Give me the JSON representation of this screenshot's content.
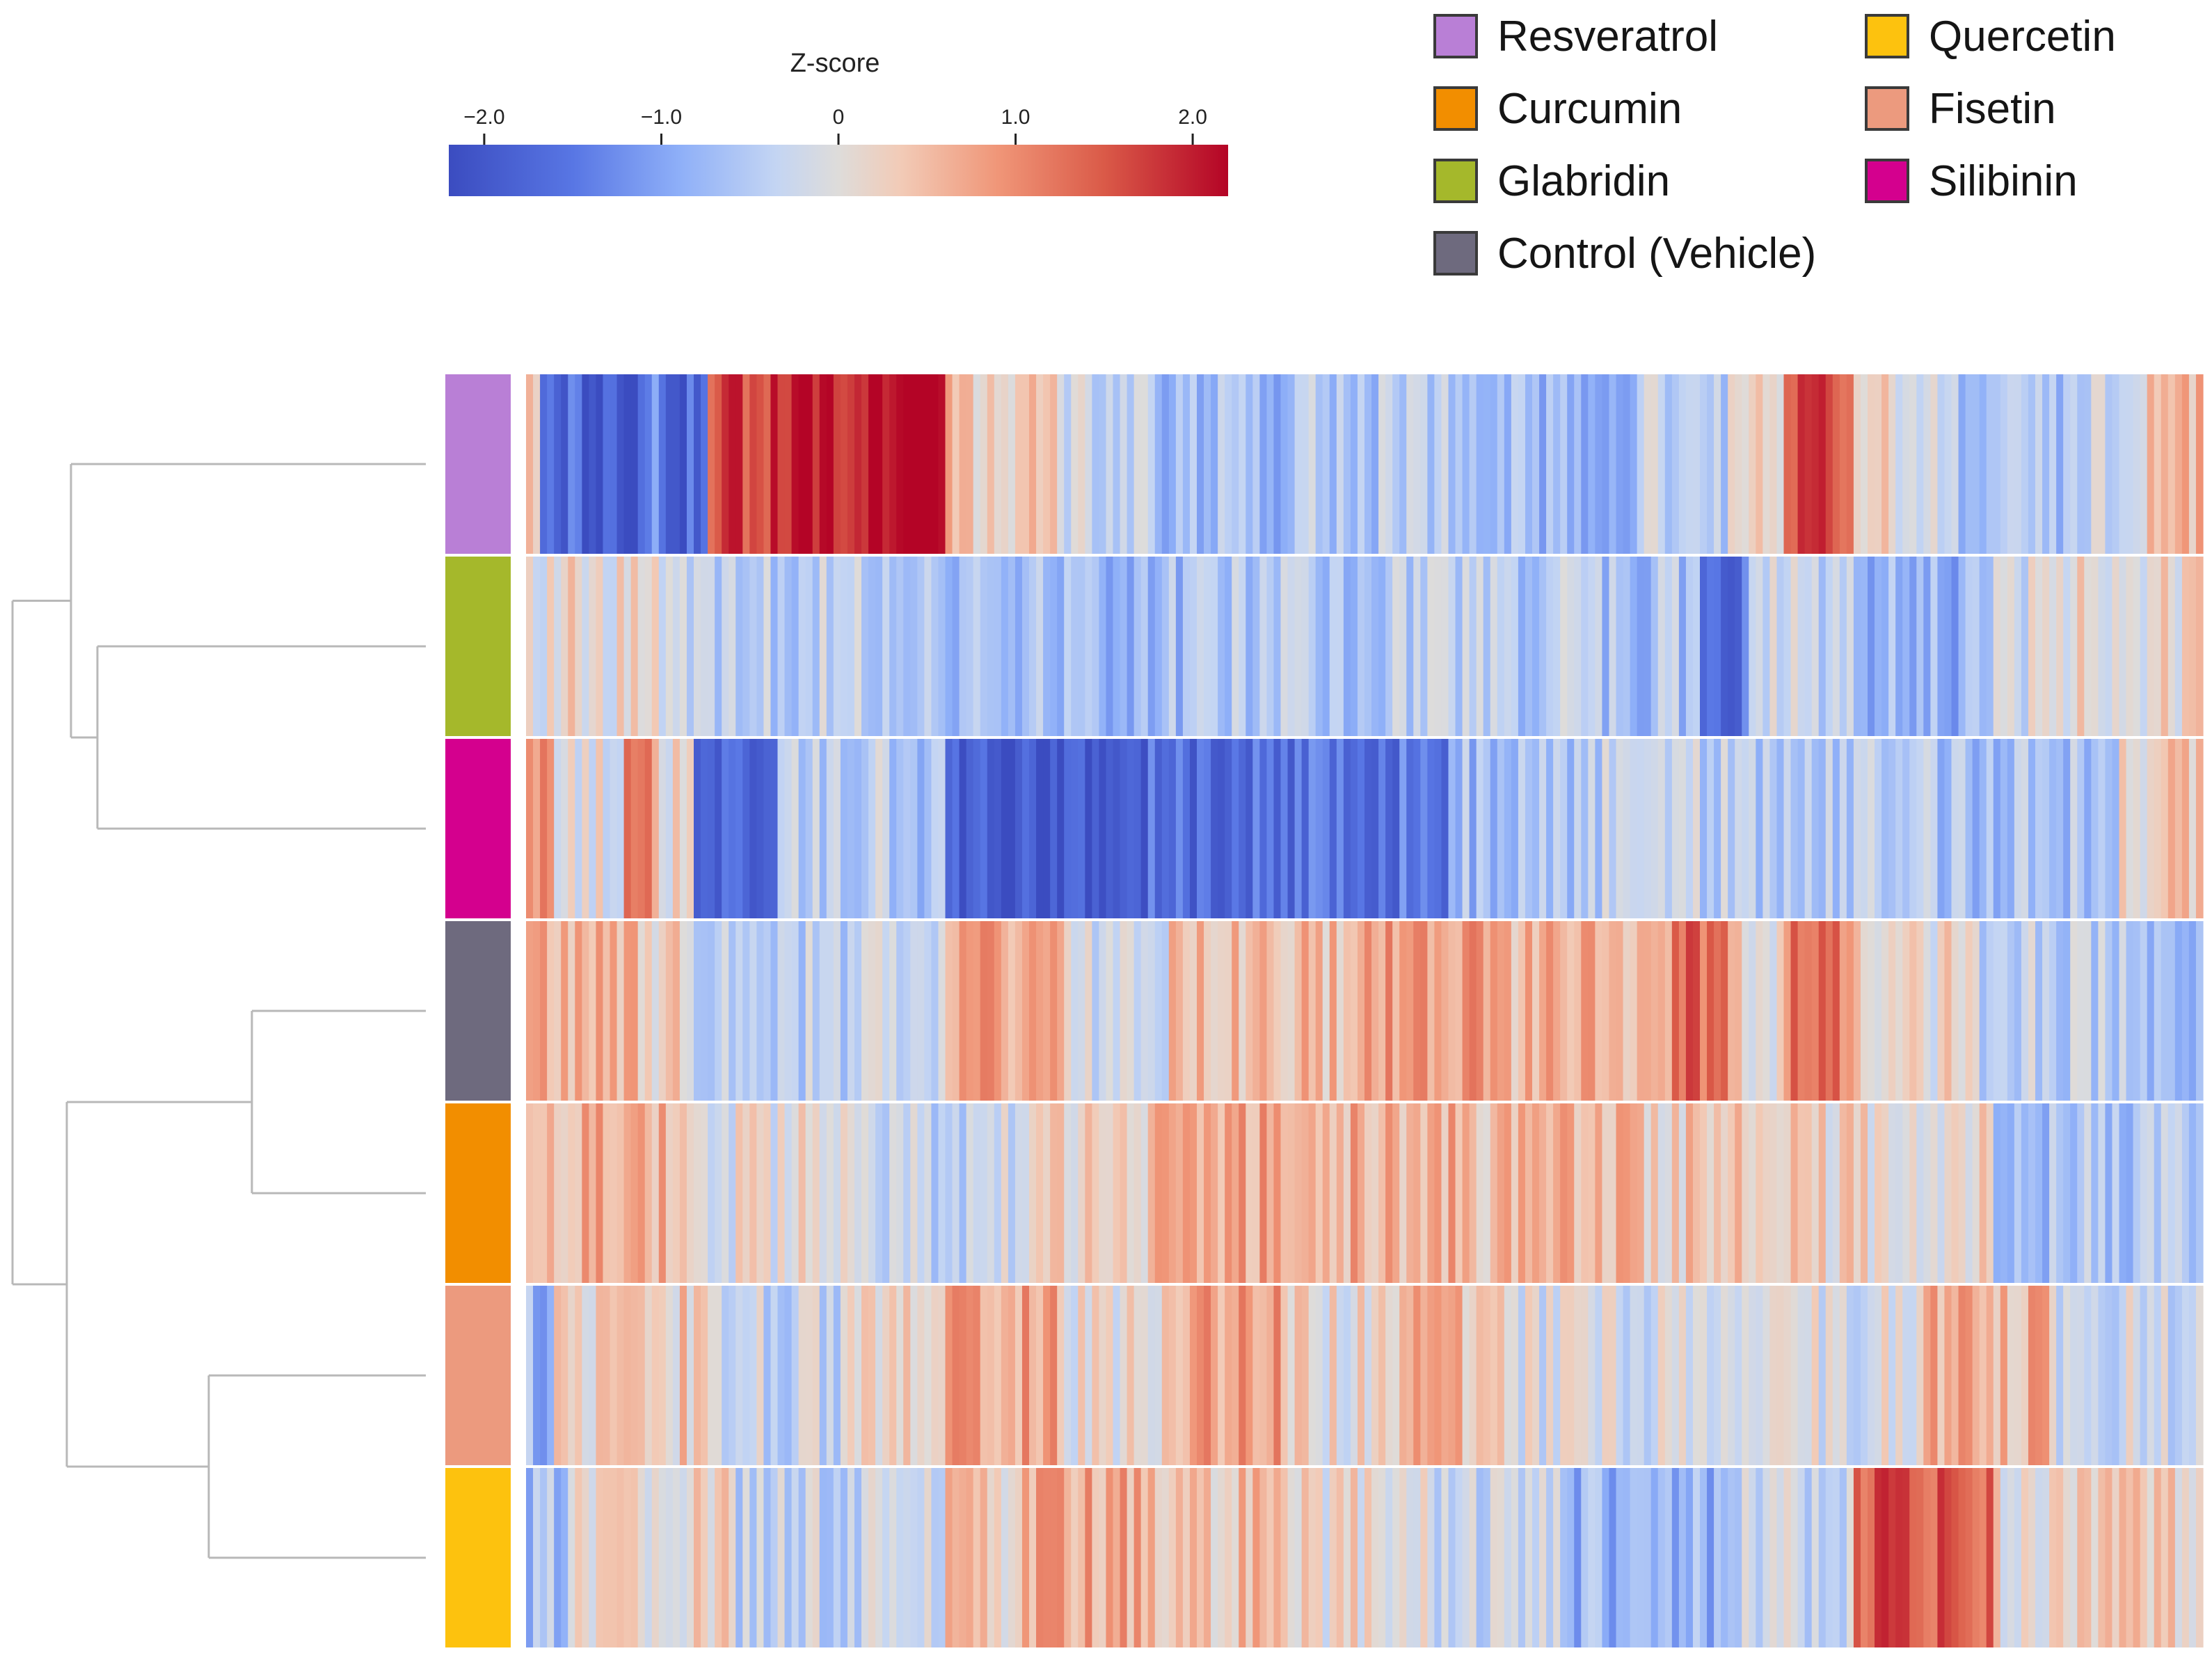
{
  "chart_data": {
    "type": "heatmap",
    "title": "",
    "colorbar": {
      "title": "Z-score",
      "min": -2.2,
      "max": 2.2,
      "ticks": [
        -2.0,
        -1.0,
        0,
        1.0,
        2.0
      ],
      "tick_labels": [
        "−2.0",
        "−1.0",
        "0",
        "1.0",
        "2.0"
      ],
      "colors": [
        "#3b4cc0",
        "#7b9ff9",
        "#c0d4f5",
        "#dddddd",
        "#f2cbb7",
        "#ee8468",
        "#b40426"
      ]
    },
    "legend": [
      {
        "label": "Resveratrol",
        "color": "#b97fd6"
      },
      {
        "label": "Quercetin",
        "color": "#fdc20e"
      },
      {
        "label": "Curcumin",
        "color": "#f28e00"
      },
      {
        "label": "Fisetin",
        "color": "#ec9a7e"
      },
      {
        "label": "Glabridin",
        "color": "#a5b82b"
      },
      {
        "label": "Silibinin",
        "color": "#d4008e"
      },
      {
        "label": "Control (Vehicle)",
        "color": "#6e6a7e"
      }
    ],
    "rows": [
      "Resveratrol",
      "Glabridin",
      "Silibinin",
      "Control (Vehicle)",
      "Curcumin",
      "Fisetin",
      "Quercetin"
    ],
    "row_colors": [
      "#b97fd6",
      "#a5b82b",
      "#d4008e",
      "#6e6a7e",
      "#f28e00",
      "#ec9a7e",
      "#fdc20e"
    ],
    "columns_count": 240,
    "dendrogram": "((Resveratrol,(Glabridin,Silibinin)),((Control (Vehicle),Curcumin),(Fisetin,Quercetin)))",
    "row_profiles": [
      [
        {
          "start": 0,
          "end": 2,
          "z": 0.2
        },
        {
          "start": 2,
          "end": 8,
          "z": -1.6
        },
        {
          "start": 8,
          "end": 16,
          "z": -1.9
        },
        {
          "start": 16,
          "end": 20,
          "z": -1.3
        },
        {
          "start": 20,
          "end": 26,
          "z": -1.7
        },
        {
          "start": 26,
          "end": 38,
          "z": 1.7
        },
        {
          "start": 38,
          "end": 48,
          "z": 1.9
        },
        {
          "start": 48,
          "end": 60,
          "z": 2.15
        },
        {
          "start": 60,
          "end": 76,
          "z": 0.4
        },
        {
          "start": 76,
          "end": 90,
          "z": -0.3
        },
        {
          "start": 90,
          "end": 110,
          "z": -0.7
        },
        {
          "start": 110,
          "end": 140,
          "z": -0.5
        },
        {
          "start": 140,
          "end": 160,
          "z": -0.8
        },
        {
          "start": 160,
          "end": 172,
          "z": -0.4
        },
        {
          "start": 172,
          "end": 180,
          "z": 0.4
        },
        {
          "start": 180,
          "end": 190,
          "z": 1.7
        },
        {
          "start": 190,
          "end": 202,
          "z": 0.1
        },
        {
          "start": 202,
          "end": 220,
          "z": -0.6
        },
        {
          "start": 220,
          "end": 232,
          "z": -0.3
        },
        {
          "start": 232,
          "end": 240,
          "z": 0.5
        }
      ],
      [
        {
          "start": 0,
          "end": 20,
          "z": 0.1
        },
        {
          "start": 20,
          "end": 60,
          "z": -0.4
        },
        {
          "start": 60,
          "end": 100,
          "z": -0.7
        },
        {
          "start": 100,
          "end": 150,
          "z": -0.5
        },
        {
          "start": 150,
          "end": 168,
          "z": -0.6
        },
        {
          "start": 168,
          "end": 175,
          "z": -1.7
        },
        {
          "start": 175,
          "end": 190,
          "z": -0.3
        },
        {
          "start": 190,
          "end": 210,
          "z": -0.8
        },
        {
          "start": 210,
          "end": 222,
          "z": -0.1
        },
        {
          "start": 222,
          "end": 240,
          "z": 0.1
        }
      ],
      [
        {
          "start": 0,
          "end": 4,
          "z": 0.8
        },
        {
          "start": 4,
          "end": 14,
          "z": 0.0
        },
        {
          "start": 14,
          "end": 18,
          "z": 0.9
        },
        {
          "start": 18,
          "end": 24,
          "z": 0.2
        },
        {
          "start": 24,
          "end": 36,
          "z": -1.6
        },
        {
          "start": 36,
          "end": 52,
          "z": -0.4
        },
        {
          "start": 52,
          "end": 60,
          "z": -0.8
        },
        {
          "start": 60,
          "end": 80,
          "z": -1.9
        },
        {
          "start": 80,
          "end": 110,
          "z": -1.7
        },
        {
          "start": 110,
          "end": 132,
          "z": -1.5
        },
        {
          "start": 132,
          "end": 150,
          "z": -0.7
        },
        {
          "start": 150,
          "end": 175,
          "z": -0.4
        },
        {
          "start": 175,
          "end": 200,
          "z": -0.5
        },
        {
          "start": 200,
          "end": 228,
          "z": -0.6
        },
        {
          "start": 228,
          "end": 240,
          "z": 0.3
        }
      ],
      [
        {
          "start": 0,
          "end": 16,
          "z": 0.6
        },
        {
          "start": 16,
          "end": 24,
          "z": 0.2
        },
        {
          "start": 24,
          "end": 46,
          "z": -0.4
        },
        {
          "start": 46,
          "end": 60,
          "z": -0.2
        },
        {
          "start": 60,
          "end": 78,
          "z": 0.7
        },
        {
          "start": 78,
          "end": 92,
          "z": -0.3
        },
        {
          "start": 92,
          "end": 120,
          "z": 0.5
        },
        {
          "start": 120,
          "end": 140,
          "z": 0.8
        },
        {
          "start": 140,
          "end": 164,
          "z": 0.6
        },
        {
          "start": 164,
          "end": 172,
          "z": 1.4
        },
        {
          "start": 172,
          "end": 180,
          "z": 0.2
        },
        {
          "start": 180,
          "end": 190,
          "z": 1.2
        },
        {
          "start": 190,
          "end": 208,
          "z": 0.1
        },
        {
          "start": 208,
          "end": 228,
          "z": -0.4
        },
        {
          "start": 228,
          "end": 240,
          "z": -0.6
        }
      ],
      [
        {
          "start": 0,
          "end": 24,
          "z": 0.6
        },
        {
          "start": 24,
          "end": 50,
          "z": 0.0
        },
        {
          "start": 50,
          "end": 70,
          "z": -0.3
        },
        {
          "start": 70,
          "end": 90,
          "z": 0.2
        },
        {
          "start": 90,
          "end": 110,
          "z": 0.7
        },
        {
          "start": 110,
          "end": 136,
          "z": 0.6
        },
        {
          "start": 136,
          "end": 160,
          "z": 0.5
        },
        {
          "start": 160,
          "end": 180,
          "z": 0.3
        },
        {
          "start": 180,
          "end": 210,
          "z": 0.2
        },
        {
          "start": 210,
          "end": 240,
          "z": -0.6
        }
      ],
      [
        {
          "start": 0,
          "end": 4,
          "z": -0.8
        },
        {
          "start": 4,
          "end": 28,
          "z": 0.3
        },
        {
          "start": 28,
          "end": 46,
          "z": -0.3
        },
        {
          "start": 46,
          "end": 60,
          "z": 0.3
        },
        {
          "start": 60,
          "end": 76,
          "z": 0.8
        },
        {
          "start": 76,
          "end": 92,
          "z": 0.1
        },
        {
          "start": 92,
          "end": 108,
          "z": 0.8
        },
        {
          "start": 108,
          "end": 124,
          "z": 0.1
        },
        {
          "start": 124,
          "end": 140,
          "z": 0.5
        },
        {
          "start": 140,
          "end": 156,
          "z": -0.1
        },
        {
          "start": 156,
          "end": 176,
          "z": -0.2
        },
        {
          "start": 176,
          "end": 200,
          "z": -0.1
        },
        {
          "start": 200,
          "end": 218,
          "z": 0.6
        },
        {
          "start": 218,
          "end": 240,
          "z": -0.2
        }
      ],
      [
        {
          "start": 0,
          "end": 6,
          "z": -0.6
        },
        {
          "start": 6,
          "end": 30,
          "z": 0.2
        },
        {
          "start": 30,
          "end": 60,
          "z": -0.3
        },
        {
          "start": 60,
          "end": 70,
          "z": 0.3
        },
        {
          "start": 70,
          "end": 90,
          "z": 0.7
        },
        {
          "start": 90,
          "end": 110,
          "z": 0.4
        },
        {
          "start": 110,
          "end": 130,
          "z": 0.1
        },
        {
          "start": 130,
          "end": 150,
          "z": -0.3
        },
        {
          "start": 150,
          "end": 170,
          "z": -0.8
        },
        {
          "start": 170,
          "end": 190,
          "z": -0.3
        },
        {
          "start": 190,
          "end": 210,
          "z": 1.5
        },
        {
          "start": 210,
          "end": 240,
          "z": 0.2
        }
      ]
    ]
  }
}
